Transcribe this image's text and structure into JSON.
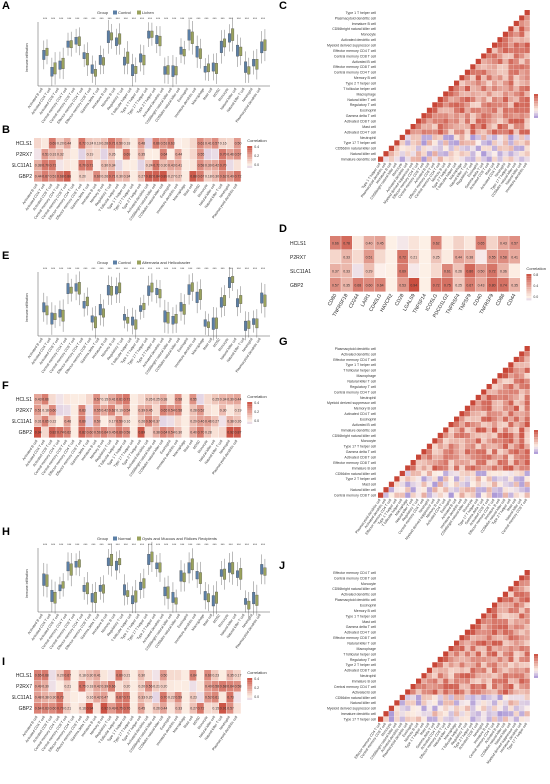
{
  "panel_labels": [
    "A",
    "B",
    "C",
    "D",
    "E",
    "F",
    "G",
    "H",
    "I",
    "J"
  ],
  "genes": [
    "HCLS1",
    "P2RX7",
    "SLC11A1",
    "GBP2"
  ],
  "legend_title": "Correlation",
  "legend_group": "Group",
  "groups": {
    "A": [
      "Control",
      "Lichen"
    ],
    "E": [
      "Control",
      "Alternaria and Helicobacter"
    ],
    "H": [
      "Normal",
      "Oysts and Mucous and Ridices Recipients"
    ]
  },
  "d_colorbar_ticks": [
    "0.8",
    "0.4",
    "0.0"
  ],
  "b_colorbar_ticks": [
    "0.4",
    "0.2",
    "0.0"
  ],
  "immune_cells_A": [
    "Activated B cell",
    "Activated CD4 T cell",
    "Activated CD8 T cell",
    "Central memory CD4 T cell",
    "Central memory CD8 T cell",
    "Effector memory CD4 T cell",
    "Effector memory CD8 T cell",
    "Gamma delta T cell",
    "Immature B cell",
    "Memory B cell",
    "Regulatory T cell",
    "T follicular helper cell",
    "Type 1 T helper cell",
    "Type 17 T helper cell",
    "Type 2 T helper cell",
    "Activated dendritic cell",
    "CD56bright natural killer cell",
    "CD56dim natural killer cell",
    "Eosinophil",
    "Immature dendritic cell",
    "Macrophage",
    "Mast cell",
    "MDSC",
    "Monocyte",
    "Natural killer cell",
    "Natural killer T cell",
    "Neutrophil",
    "Plasmacytoid dendritic cell"
  ],
  "checkpoints_D": [
    "CD80",
    "TNFRSF18",
    "CD244",
    "LAIR1",
    "CD40LG",
    "HAVCR2",
    "CD28",
    "LGALS9",
    "TNFSF14",
    "ICOSLG",
    "PDCD1LG2",
    "TNFRSF4",
    "TNFSF9",
    "CD40",
    "TNFRSF9",
    "CD86",
    "CD44"
  ],
  "immune_cells_C": [
    "Type 1 T helper cell",
    "Plasmacytoid dendritic cell",
    "Immature B cell",
    "CD56bright natural killer cell",
    "Monocyte",
    "Activated dendritic cell",
    "Myeloid derived suppressor cell",
    "Effector memory CD4 T cell",
    "Central memory CD8 T cell",
    "Activated B cell",
    "Effector memory CD8 T cell",
    "Central memory CD4 T cell",
    "Memory B cell",
    "Type 2 T helper cell",
    "T follicular helper cell",
    "Macrophage",
    "Natural killer T cell",
    "Regulatory T cell",
    "Eosinophil",
    "Gamma delta T cell",
    "Activated CD8 T cell",
    "Mast cell",
    "Activated CD4 T cell",
    "Neutrophil",
    "Type 17 T helper cell",
    "CD56dim natural killer cell",
    "Natural killer cell",
    "Immature dendritic cell"
  ],
  "immune_cells_G": [
    "Plasmacytoid dendritic cell",
    "Activated dendritic cell",
    "Effector memory CD4 T cell",
    "Type 1 T helper cell",
    "T follicular helper cell",
    "Macrophage",
    "Natural killer T cell",
    "Regulatory T cell",
    "Central memory CD4 T cell",
    "Neutrophil",
    "Myeloid derived suppressor cell",
    "Memory B cell",
    "Activated CD4 T cell",
    "Eosinophil",
    "Activated B cell",
    "Immature dendritic cell",
    "CD56bright natural killer cell",
    "Monocyte",
    "Type 17 T helper cell",
    "Gamma delta T cell",
    "Activated CD8 T cell",
    "Effector memory CD8 T cell",
    "Immature B cell",
    "CD56dim natural killer cell",
    "Type 2 T helper cell",
    "Mast cell",
    "Natural killer cell",
    "Central memory CD8 T cell"
  ],
  "immune_cells_J": [
    "Effector memory CD4 T cell",
    "Central memory CD8 T cell",
    "Monocyte",
    "CD56bright natural killer cell",
    "Activated dendritic cell",
    "Plasmacytoid dendritic cell",
    "Eosinophil",
    "Memory B cell",
    "Type 1 T helper cell",
    "Mast cell",
    "Gamma delta T cell",
    "Activated CD4 T cell",
    "Effector memory CD8 T cell",
    "Natural killer T cell",
    "Macrophage",
    "T follicular helper cell",
    "Regulatory T cell",
    "Type 2 T helper cell",
    "Activated CD8 T cell",
    "Neutrophil",
    "Immature B cell",
    "Central memory CD4 T cell",
    "Activated B cell",
    "CD56dim natural killer cell",
    "Natural killer cell",
    "Myeloid derived suppressor cell",
    "Immature dendritic cell",
    "Type 17 T helper cell"
  ],
  "colors": {
    "control": "#5b7fa6",
    "case": "#9aa25d",
    "hot": "#d8584a",
    "warm": "#f0a97c",
    "cool": "#8f85c9",
    "neutral": "#fdf4ee"
  }
}
